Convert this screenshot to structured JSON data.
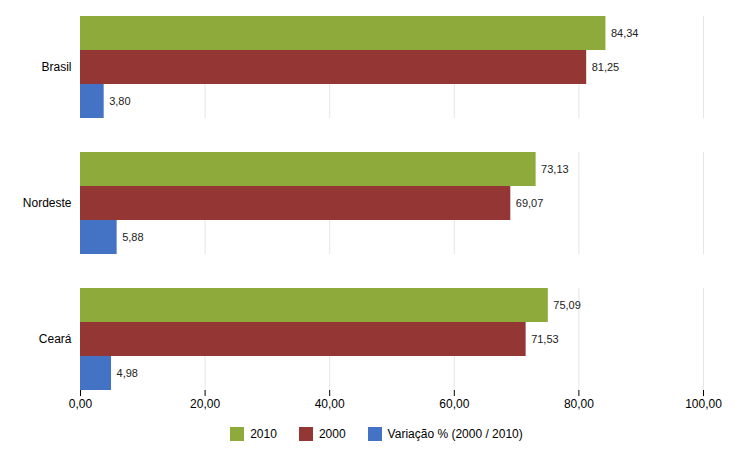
{
  "chart_data": {
    "type": "bar",
    "orientation": "horizontal",
    "categories": [
      "Brasil",
      "Nordeste",
      "Ceará"
    ],
    "series": [
      {
        "name": "2010",
        "color": "#8EAA3A",
        "values": [
          84.34,
          73.13,
          75.09
        ],
        "value_labels": [
          "84,34",
          "73,13",
          "75,09"
        ]
      },
      {
        "name": "2000",
        "color": "#943634",
        "values": [
          81.25,
          69.07,
          71.53
        ],
        "value_labels": [
          "81,25",
          "69,07",
          "71,53"
        ]
      },
      {
        "name": "Variação % (2000 / 2010)",
        "color": "#4472C4",
        "values": [
          3.8,
          5.88,
          4.98
        ],
        "value_labels": [
          "3,80",
          "5,88",
          "4,98"
        ]
      }
    ],
    "xlim": [
      0,
      100
    ],
    "xticks": [
      {
        "value": 0,
        "label": "0,00"
      },
      {
        "value": 20,
        "label": "20,00"
      },
      {
        "value": 40,
        "label": "40,00"
      },
      {
        "value": 60,
        "label": "60,00"
      },
      {
        "value": 80,
        "label": "80,00"
      },
      {
        "value": 100,
        "label": "100,00"
      }
    ],
    "grid": true,
    "data_labels": true,
    "legend": "bottom"
  }
}
